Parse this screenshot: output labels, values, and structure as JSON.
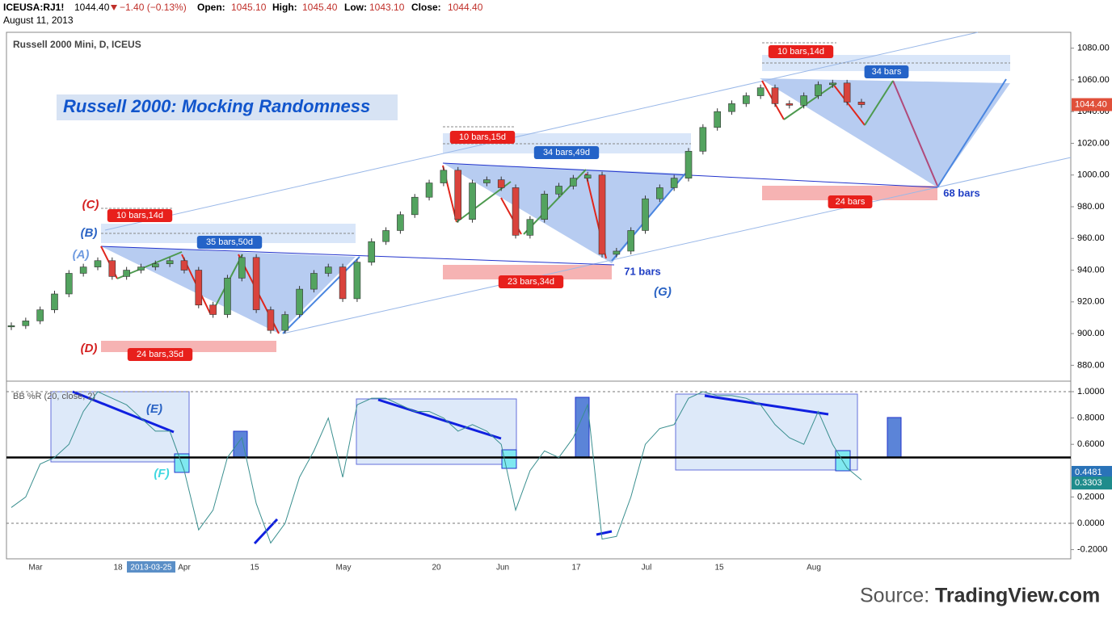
{
  "header": {
    "symbol": "ICEUSA:RJ1!",
    "last": "1044.40",
    "change": "−1.40 (−0.13%)",
    "open_label": "Open:",
    "open": "1045.10",
    "high_label": "High:",
    "high": "1045.40",
    "low_label": "Low:",
    "low": "1043.10",
    "close_label": "Close:",
    "close": "1044.40",
    "date": "August 11, 2013"
  },
  "source": {
    "prefix": "Source:",
    "brand": "TradingView.com"
  },
  "chart_data": {
    "type": "candlestick",
    "title": "Russell 2000: Mocking Randomness",
    "subtitle": "Russell 2000 Mini, D, ICEUS",
    "closes": [
      905,
      908,
      915,
      925,
      938,
      942,
      946,
      936,
      940,
      942,
      944,
      946,
      940,
      918,
      912,
      935,
      948,
      915,
      902,
      912,
      928,
      938,
      942,
      922,
      945,
      958,
      965,
      975,
      986,
      995,
      1003,
      972,
      995,
      997,
      992,
      962,
      972,
      988,
      993,
      998,
      1000,
      950,
      952,
      965,
      985,
      992,
      998,
      1015,
      1030,
      1040,
      1045,
      1050,
      1055,
      1045,
      1044,
      1050,
      1057,
      1058,
      1046,
      1044.4
    ],
    "up_color": "#53a35f",
    "down_color": "#d9433c",
    "ylim": [
      870,
      1090
    ],
    "yticks": [
      {
        "value": 880,
        "label": "880.00"
      },
      {
        "value": 900,
        "label": "900.00"
      },
      {
        "value": 920,
        "label": "920.00"
      },
      {
        "value": 940,
        "label": "940.00"
      },
      {
        "value": 960,
        "label": "960.00"
      },
      {
        "value": 980,
        "label": "980.00"
      },
      {
        "value": 1000,
        "label": "1000.00"
      },
      {
        "value": 1020,
        "label": "1020.00"
      },
      {
        "value": 1040,
        "label": "1040.00"
      },
      {
        "value": 1060,
        "label": "1060.00"
      },
      {
        "value": 1080,
        "label": "1080.00"
      }
    ],
    "price_tag": {
      "value": 1044.4,
      "label": "1044.40"
    },
    "x_labels": [
      "Mar",
      "18",
      "2013-03-25",
      "Apr",
      "15",
      "May",
      "20",
      "Jun",
      "17",
      "Jul",
      "15",
      "Aug"
    ],
    "indicator": {
      "name": "BB %R (20, close, 2)",
      "color": "#3a8f8f",
      "values": [
        0.12,
        0.2,
        0.45,
        0.5,
        0.6,
        0.85,
        1.0,
        0.95,
        0.9,
        0.8,
        0.7,
        0.7,
        0.4,
        -0.05,
        0.1,
        0.5,
        0.65,
        0.15,
        -0.15,
        0.0,
        0.35,
        0.55,
        0.8,
        0.35,
        0.9,
        0.95,
        0.95,
        0.9,
        0.85,
        0.85,
        0.8,
        0.7,
        0.75,
        0.7,
        0.6,
        0.1,
        0.4,
        0.55,
        0.5,
        0.65,
        0.9,
        -0.12,
        -0.1,
        0.2,
        0.6,
        0.72,
        0.75,
        0.95,
        1.0,
        0.97,
        0.97,
        0.95,
        0.9,
        0.75,
        0.65,
        0.6,
        0.85,
        0.6,
        0.42,
        0.33
      ],
      "ylim": [
        -0.27,
        1.08
      ],
      "yticks": [
        {
          "value": 1,
          "label": "1.0000"
        },
        {
          "value": 0.8,
          "label": "0.8000"
        },
        {
          "value": 0.6,
          "label": "0.6000"
        },
        {
          "value": 0.2,
          "label": "0.2000"
        },
        {
          "value": 0,
          "label": "0.0000"
        },
        {
          "value": -0.2,
          "label": "-0.2000"
        }
      ],
      "tags": [
        {
          "value": 0.4481,
          "label": "0.4481"
        },
        {
          "value": 0.3303,
          "label": "0.3303"
        }
      ]
    },
    "annotations": [
      "(A)",
      "(B)",
      "(C)",
      "(D)",
      "10 bars,14d",
      "35 bars,50d",
      "24 bars,35d",
      "10 bars,15d",
      "34 bars,49d",
      "23 bars,34d",
      "71 bars",
      "(G)",
      "10 bars,14d",
      "34 bars",
      "24 bars",
      "68 bars",
      "(E)",
      "(F)"
    ]
  }
}
